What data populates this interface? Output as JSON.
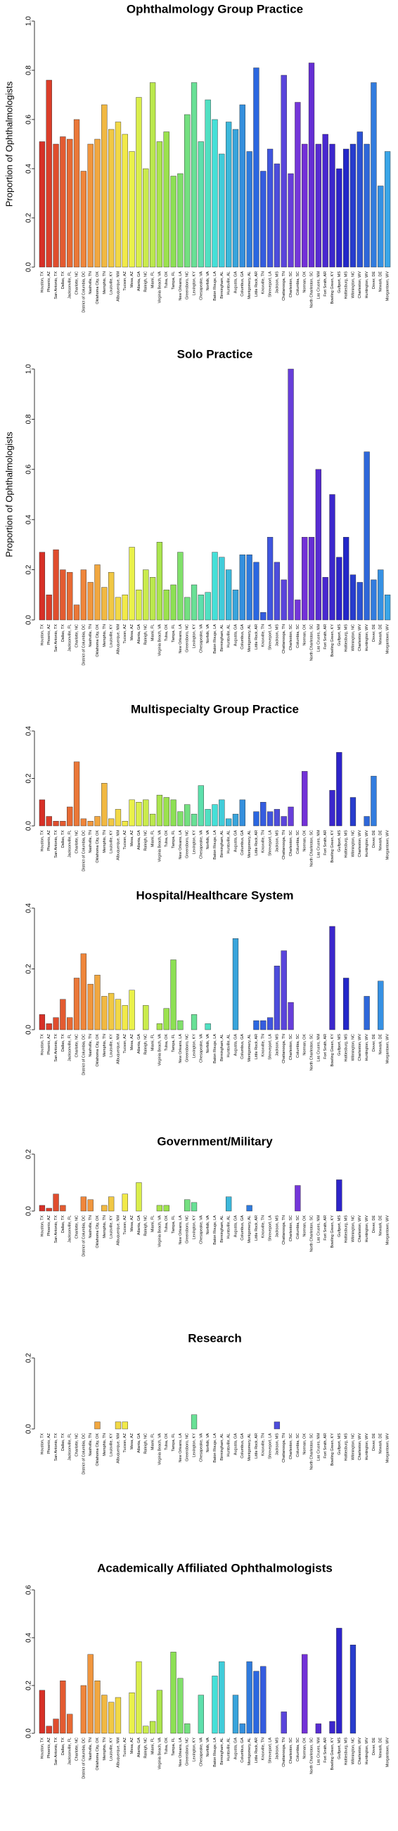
{
  "chart_data": [
    {
      "type": "bar",
      "title": "Ophthalmology Group Practice",
      "ylabel": "Proportion of Ophthalmologists",
      "categories": [
        "Houston, TX",
        "Phoenix, AZ",
        "San Antonio, TX",
        "Dallas, TX",
        "Jacksonville, FL",
        "Charlotte, NC",
        "District of Columbia, DC",
        "Nashville, TN",
        "Oklahoma City, OK",
        "Memphis, TN",
        "Louisville, KY",
        "Albuquerque, NM",
        "Tucson, AZ",
        "Mesa, AZ",
        "Atlanta, GA",
        "Raleigh, NC",
        "Miami, FL",
        "Virginia Beach, VA",
        "Tulsa, OK",
        "Tampa, FL",
        "New Orleans, LA",
        "Greensboro, NC",
        "Lexington, KY",
        "Chesapeake, VA",
        "Norfolk, VA",
        "Baton Rouge, LA",
        "Birmingham, AL",
        "Huntsville, AL",
        "Augusta, GA",
        "Columbus, GA",
        "Montgomery, AL",
        "Little Rock, AR",
        "Knoxville, TN",
        "Shreveport, LA",
        "Jackson, MS",
        "Chattanooga, TN",
        "Charleston, SC",
        "Columbia, SC",
        "Norman, OK",
        "North Charleston, SC",
        "Las Cruces, NM",
        "Fort Smith, AR",
        "Bowling Green, KY",
        "Gulfport, MS",
        "Hattiesburg, MS",
        "Wilmington, NC",
        "Charleston, WV",
        "Huntington, WV",
        "Dover, DE",
        "Newark, DE",
        "Morgantown, WV"
      ],
      "values": [
        0.51,
        0.76,
        0.5,
        0.53,
        0.52,
        0.6,
        0.39,
        0.5,
        0.52,
        0.66,
        0.56,
        0.59,
        0.54,
        0.47,
        0.69,
        0.4,
        0.75,
        0.51,
        0.55,
        0.37,
        0.38,
        0.62,
        0.75,
        0.51,
        0.68,
        0.6,
        0.46,
        0.59,
        0.56,
        0.66,
        0.47,
        0.81,
        0.39,
        0.48,
        0.42,
        0.78,
        0.38,
        0.67,
        0.5,
        0.83,
        0.5,
        0.54,
        0.5,
        0.4,
        0.48,
        0.5,
        0.55,
        0.5,
        0.75,
        0.33,
        0.47
      ],
      "ylim": [
        0,
        1
      ],
      "yticks": [
        {
          "value": 0,
          "label": "0.0"
        },
        {
          "value": 0.2,
          "label": "0.2"
        },
        {
          "value": 0.4,
          "label": "0.4"
        },
        {
          "value": 0.6,
          "label": "0.6"
        },
        {
          "value": 0.8,
          "label": "0.8"
        },
        {
          "value": 1,
          "label": "1.0"
        }
      ],
      "palette": [
        "#d73027",
        "#f08a3c",
        "#f2f24a",
        "#8fe04f",
        "#45e0d8",
        "#2a62e0",
        "#7a32d8",
        "#2222c8",
        "#3aa6e8"
      ]
    },
    {
      "type": "bar",
      "title": "Solo Practice",
      "ylabel": "Proportion of Ophthalmologists",
      "categories": [
        "Houston, TX",
        "Phoenix, AZ",
        "San Antonio, TX",
        "Dallas, TX",
        "Jacksonville, FL",
        "Charlotte, NC",
        "District of Columbia, DC",
        "Nashville, TN",
        "Oklahoma City, OK",
        "Memphis, TN",
        "Louisville, KY",
        "Albuquerque, NM",
        "Tucson, AZ",
        "Mesa, AZ",
        "Atlanta, GA",
        "Raleigh, NC",
        "Miami, FL",
        "Virginia Beach, VA",
        "Tulsa, OK",
        "Tampa, FL",
        "New Orleans, LA",
        "Greensboro, NC",
        "Lexington, KY",
        "Chesapeake, VA",
        "Norfolk, VA",
        "Baton Rouge, LA",
        "Birmingham, AL",
        "Huntsville, AL",
        "Augusta, GA",
        "Columbus, GA",
        "Montgomery, AL",
        "Little Rock, AR",
        "Knoxville, TN",
        "Shreveport, LA",
        "Jackson, MS",
        "Chattanooga, TN",
        "Charleston, SC",
        "Columbia, SC",
        "Norman, OK",
        "North Charleston, SC",
        "Las Cruces, NM",
        "Fort Smith, AR",
        "Bowling Green, KY",
        "Gulfport, MS",
        "Hattiesburg, MS",
        "Wilmington, NC",
        "Charleston, WV",
        "Huntington, WV",
        "Dover, DE",
        "Newark, DE",
        "Morgantown, WV"
      ],
      "values": [
        0.27,
        0.1,
        0.28,
        0.2,
        0.19,
        0.06,
        0.2,
        0.15,
        0.22,
        0.13,
        0.19,
        0.09,
        0.1,
        0.29,
        0.12,
        0.2,
        0.17,
        0.31,
        0.12,
        0.14,
        0.27,
        0.09,
        0.14,
        0.1,
        0.11,
        0.27,
        0.25,
        0.2,
        0.12,
        0.26,
        0.26,
        0.23,
        0.03,
        0.33,
        0.23,
        0.16,
        1.0,
        0.08,
        0.33,
        0.33,
        0.6,
        0.17,
        0.5,
        0.25,
        0.33,
        0.18,
        0.15,
        0.67,
        0.16,
        0.2,
        0.1
      ],
      "ylim": [
        0,
        1
      ],
      "yticks": [
        {
          "value": 0,
          "label": "0.0"
        },
        {
          "value": 0.2,
          "label": "0.2"
        },
        {
          "value": 0.4,
          "label": "0.4"
        },
        {
          "value": 0.6,
          "label": "0.6"
        },
        {
          "value": 0.8,
          "label": "0.8"
        },
        {
          "value": 1,
          "label": "1.0"
        }
      ],
      "palette": [
        "#d73027",
        "#f08a3c",
        "#f2f24a",
        "#8fe04f",
        "#45e0d8",
        "#2a62e0",
        "#7a32d8",
        "#2222c8",
        "#3aa6e8"
      ]
    },
    {
      "type": "bar",
      "title": "Multispecialty Group Practice",
      "categories": [
        "Houston, TX",
        "Phoenix, AZ",
        "San Antonio, TX",
        "Dallas, TX",
        "Jacksonville, FL",
        "Charlotte, NC",
        "District of Columbia, DC",
        "Nashville, TN",
        "Oklahoma City, OK",
        "Memphis, TN",
        "Louisville, KY",
        "Albuquerque, NM",
        "Tucson, AZ",
        "Mesa, AZ",
        "Atlanta, GA",
        "Raleigh, NC",
        "Miami, FL",
        "Virginia Beach, VA",
        "Tulsa, OK",
        "Tampa, FL",
        "New Orleans, LA",
        "Greensboro, NC",
        "Lexington, KY",
        "Chesapeake, VA",
        "Norfolk, VA",
        "Baton Rouge, LA",
        "Birmingham, AL",
        "Huntsville, AL",
        "Augusta, GA",
        "Columbus, GA",
        "Montgomery, AL",
        "Little Rock, AR",
        "Knoxville, TN",
        "Shreveport, LA",
        "Jackson, MS",
        "Chattanooga, TN",
        "Charleston, SC",
        "Columbia, SC",
        "Norman, OK",
        "North Charleston, SC",
        "Las Cruces, NM",
        "Fort Smith, AR",
        "Bowling Green, KY",
        "Gulfport, MS",
        "Hattiesburg, MS",
        "Wilmington, NC",
        "Charleston, WV",
        "Huntington, WV",
        "Dover, DE",
        "Newark, DE",
        "Morgantown, WV"
      ],
      "values": [
        0.11,
        0.04,
        0.02,
        0.02,
        0.08,
        0.27,
        0.03,
        0.02,
        0.04,
        0.18,
        0.03,
        0.07,
        0.02,
        0.11,
        0.1,
        0.11,
        0.05,
        0.13,
        0.12,
        0.11,
        0.06,
        0.09,
        0.05,
        0.17,
        0.07,
        0.09,
        0.11,
        0.03,
        0.05,
        0.11,
        0,
        0.06,
        0.1,
        0.06,
        0.07,
        0.04,
        0.08,
        0,
        0.23,
        0,
        0,
        0,
        0.15,
        0.31,
        0,
        0.12,
        0,
        0.04,
        0.21,
        0,
        0
      ],
      "ylim": [
        0,
        0.4
      ],
      "yticks": [
        {
          "value": 0,
          "label": "0.0"
        },
        {
          "value": 0.2,
          "label": "0.2"
        },
        {
          "value": 0.4,
          "label": "0.4"
        }
      ],
      "palette": [
        "#d73027",
        "#f08a3c",
        "#f2f24a",
        "#8fe04f",
        "#45e0d8",
        "#2a62e0",
        "#7a32d8",
        "#2222c8",
        "#3aa6e8"
      ]
    },
    {
      "type": "bar",
      "title": "Hospital/Healthcare System",
      "categories": [
        "Houston, TX",
        "Phoenix, AZ",
        "San Antonio, TX",
        "Dallas, TX",
        "Jacksonville, FL",
        "Charlotte, NC",
        "District of Columbia, DC",
        "Nashville, TN",
        "Oklahoma City, OK",
        "Memphis, TN",
        "Louisville, KY",
        "Albuquerque, NM",
        "Tucson, AZ",
        "Mesa, AZ",
        "Atlanta, GA",
        "Raleigh, NC",
        "Miami, FL",
        "Virginia Beach, VA",
        "Tulsa, OK",
        "Tampa, FL",
        "New Orleans, LA",
        "Greensboro, NC",
        "Lexington, KY",
        "Chesapeake, VA",
        "Norfolk, VA",
        "Baton Rouge, LA",
        "Birmingham, AL",
        "Huntsville, AL",
        "Augusta, GA",
        "Columbus, GA",
        "Montgomery, AL",
        "Little Rock, AR",
        "Knoxville, TN",
        "Shreveport, LA",
        "Jackson, MS",
        "Chattanooga, TN",
        "Charleston, SC",
        "Columbia, SC",
        "Norman, OK",
        "North Charleston, SC",
        "Las Cruces, NM",
        "Fort Smith, AR",
        "Bowling Green, KY",
        "Gulfport, MS",
        "Hattiesburg, MS",
        "Wilmington, NC",
        "Charleston, WV",
        "Huntington, WV",
        "Dover, DE",
        "Newark, DE",
        "Morgantown, WV"
      ],
      "values": [
        0.05,
        0.02,
        0.04,
        0.1,
        0.04,
        0.17,
        0.25,
        0.15,
        0.18,
        0.11,
        0.12,
        0.1,
        0.08,
        0.13,
        0,
        0.08,
        0,
        0.02,
        0.07,
        0.23,
        0.03,
        0,
        0.05,
        0,
        0.02,
        0,
        0,
        0,
        0.3,
        0,
        0,
        0.03,
        0.03,
        0.04,
        0.21,
        0.26,
        0.09,
        0,
        0,
        0,
        0,
        0,
        0.34,
        0,
        0.17,
        0,
        0,
        0.11,
        0,
        0.16,
        0
      ],
      "ylim": [
        0,
        0.4
      ],
      "yticks": [
        {
          "value": 0,
          "label": "0.0"
        },
        {
          "value": 0.2,
          "label": "0.2"
        },
        {
          "value": 0.4,
          "label": "0.4"
        }
      ],
      "palette": [
        "#d73027",
        "#f08a3c",
        "#f2f24a",
        "#8fe04f",
        "#45e0d8",
        "#2a62e0",
        "#7a32d8",
        "#2222c8",
        "#3aa6e8"
      ]
    },
    {
      "type": "bar",
      "title": "Government/Military",
      "categories": [
        "Houston, TX",
        "Phoenix, AZ",
        "San Antonio, TX",
        "Dallas, TX",
        "Jacksonville, FL",
        "Charlotte, NC",
        "District of Columbia, DC",
        "Nashville, TN",
        "Oklahoma City, OK",
        "Memphis, TN",
        "Louisville, KY",
        "Albuquerque, NM",
        "Tucson, AZ",
        "Mesa, AZ",
        "Atlanta, GA",
        "Raleigh, NC",
        "Miami, FL",
        "Virginia Beach, VA",
        "Tulsa, OK",
        "Tampa, FL",
        "New Orleans, LA",
        "Greensboro, NC",
        "Lexington, KY",
        "Chesapeake, VA",
        "Norfolk, VA",
        "Baton Rouge, LA",
        "Birmingham, AL",
        "Huntsville, AL",
        "Augusta, GA",
        "Columbus, GA",
        "Montgomery, AL",
        "Little Rock, AR",
        "Knoxville, TN",
        "Shreveport, LA",
        "Jackson, MS",
        "Chattanooga, TN",
        "Charleston, SC",
        "Columbia, SC",
        "Norman, OK",
        "North Charleston, SC",
        "Las Cruces, NM",
        "Fort Smith, AR",
        "Bowling Green, KY",
        "Gulfport, MS",
        "Hattiesburg, MS",
        "Wilmington, NC",
        "Charleston, WV",
        "Huntington, WV",
        "Dover, DE",
        "Newark, DE",
        "Morgantown, WV"
      ],
      "values": [
        0.02,
        0.01,
        0.06,
        0.02,
        0,
        0,
        0.05,
        0.04,
        0,
        0.02,
        0.05,
        0,
        0.06,
        0,
        0.1,
        0,
        0,
        0.02,
        0.02,
        0,
        0,
        0.04,
        0.03,
        0,
        0,
        0,
        0,
        0.05,
        0,
        0,
        0.02,
        0,
        0,
        0,
        0,
        0,
        0,
        0.09,
        0,
        0,
        0,
        0,
        0,
        0.11,
        0,
        0,
        0,
        0,
        0,
        0,
        0
      ],
      "ylim": [
        0,
        0.2
      ],
      "yticks": [
        {
          "value": 0,
          "label": "0.0"
        },
        {
          "value": 0.2,
          "label": "0.2"
        }
      ],
      "palette": [
        "#d73027",
        "#f08a3c",
        "#f2f24a",
        "#8fe04f",
        "#45e0d8",
        "#2a62e0",
        "#7a32d8",
        "#2222c8",
        "#3aa6e8"
      ]
    },
    {
      "type": "bar",
      "title": "Research",
      "categories": [
        "Houston, TX",
        "Phoenix, AZ",
        "San Antonio, TX",
        "Dallas, TX",
        "Jacksonville, FL",
        "Charlotte, NC",
        "District of Columbia, DC",
        "Nashville, TN",
        "Oklahoma City, OK",
        "Memphis, TN",
        "Louisville, KY",
        "Albuquerque, NM",
        "Tucson, AZ",
        "Mesa, AZ",
        "Atlanta, GA",
        "Raleigh, NC",
        "Miami, FL",
        "Virginia Beach, VA",
        "Tulsa, OK",
        "Tampa, FL",
        "New Orleans, LA",
        "Greensboro, NC",
        "Lexington, KY",
        "Chesapeake, VA",
        "Norfolk, VA",
        "Baton Rouge, LA",
        "Birmingham, AL",
        "Huntsville, AL",
        "Augusta, GA",
        "Columbus, GA",
        "Montgomery, AL",
        "Little Rock, AR",
        "Knoxville, TN",
        "Shreveport, LA",
        "Jackson, MS",
        "Chattanooga, TN",
        "Charleston, SC",
        "Columbia, SC",
        "Norman, OK",
        "North Charleston, SC",
        "Las Cruces, NM",
        "Fort Smith, AR",
        "Bowling Green, KY",
        "Gulfport, MS",
        "Hattiesburg, MS",
        "Wilmington, NC",
        "Charleston, WV",
        "Huntington, WV",
        "Dover, DE",
        "Newark, DE",
        "Morgantown, WV"
      ],
      "values": [
        0,
        0,
        0,
        0,
        0,
        0,
        0,
        0,
        0.02,
        0,
        0,
        0.02,
        0.02,
        0,
        0,
        0,
        0,
        0,
        0,
        0,
        0,
        0,
        0.04,
        0,
        0,
        0,
        0,
        0,
        0,
        0,
        0,
        0,
        0,
        0,
        0.02,
        0,
        0,
        0,
        0,
        0,
        0,
        0,
        0,
        0,
        0,
        0,
        0,
        0,
        0,
        0,
        0
      ],
      "ylim": [
        0,
        0.2
      ],
      "yticks": [
        {
          "value": 0,
          "label": "0.0"
        },
        {
          "value": 0.2,
          "label": "0.2"
        }
      ],
      "palette": [
        "#d73027",
        "#f08a3c",
        "#f2f24a",
        "#8fe04f",
        "#45e0d8",
        "#2a62e0",
        "#7a32d8",
        "#2222c8",
        "#3aa6e8"
      ]
    },
    {
      "type": "bar",
      "title": "Academically Affiliated Ophthalmologists",
      "categories": [
        "Houston, TX",
        "Phoenix, AZ",
        "San Antonio, TX",
        "Dallas, TX",
        "Jacksonville, FL",
        "Charlotte, NC",
        "District of Columbia, DC",
        "Nashville, TN",
        "Oklahoma City, OK",
        "Memphis, TN",
        "Louisville, KY",
        "Albuquerque, NM",
        "Tucson, AZ",
        "Mesa, AZ",
        "Atlanta, GA",
        "Raleigh, NC",
        "Miami, FL",
        "Virginia Beach, VA",
        "Tulsa, OK",
        "Tampa, FL",
        "New Orleans, LA",
        "Greensboro, NC",
        "Lexington, KY",
        "Chesapeake, VA",
        "Norfolk, VA",
        "Baton Rouge, LA",
        "Birmingham, AL",
        "Huntsville, AL",
        "Augusta, GA",
        "Columbus, GA",
        "Montgomery, AL",
        "Little Rock, AR",
        "Knoxville, TN",
        "Shreveport, LA",
        "Jackson, MS",
        "Chattanooga, TN",
        "Charleston, SC",
        "Columbia, SC",
        "Norman, OK",
        "North Charleston, SC",
        "Las Cruces, NM",
        "Fort Smith, AR",
        "Bowling Green, KY",
        "Gulfport, MS",
        "Hattiesburg, MS",
        "Wilmington, NC",
        "Charleston, WV",
        "Huntington, WV",
        "Dover, DE",
        "Newark, DE",
        "Morgantown, WV"
      ],
      "values": [
        0.18,
        0.03,
        0.06,
        0.22,
        0.08,
        0,
        0.2,
        0.33,
        0.22,
        0.16,
        0.13,
        0.15,
        0,
        0.17,
        0.3,
        0.03,
        0.05,
        0.18,
        0,
        0.34,
        0.23,
        0.04,
        0,
        0.16,
        0,
        0.24,
        0.3,
        0,
        0.16,
        0.04,
        0.3,
        0.26,
        0.28,
        0,
        0,
        0.09,
        0,
        0,
        0.33,
        0,
        0.04,
        0,
        0.05,
        0.44,
        0,
        0.37,
        0,
        0,
        0,
        0,
        0
      ],
      "ylim": [
        0,
        0.6
      ],
      "yticks": [
        {
          "value": 0,
          "label": "0.0"
        },
        {
          "value": 0.2,
          "label": "0.2"
        },
        {
          "value": 0.4,
          "label": "0.4"
        },
        {
          "value": 0.6,
          "label": "0.6"
        }
      ],
      "palette": [
        "#d73027",
        "#f08a3c",
        "#f2f24a",
        "#8fe04f",
        "#45e0d8",
        "#2a62e0",
        "#7a32d8",
        "#2222c8",
        "#3aa6e8"
      ]
    }
  ]
}
